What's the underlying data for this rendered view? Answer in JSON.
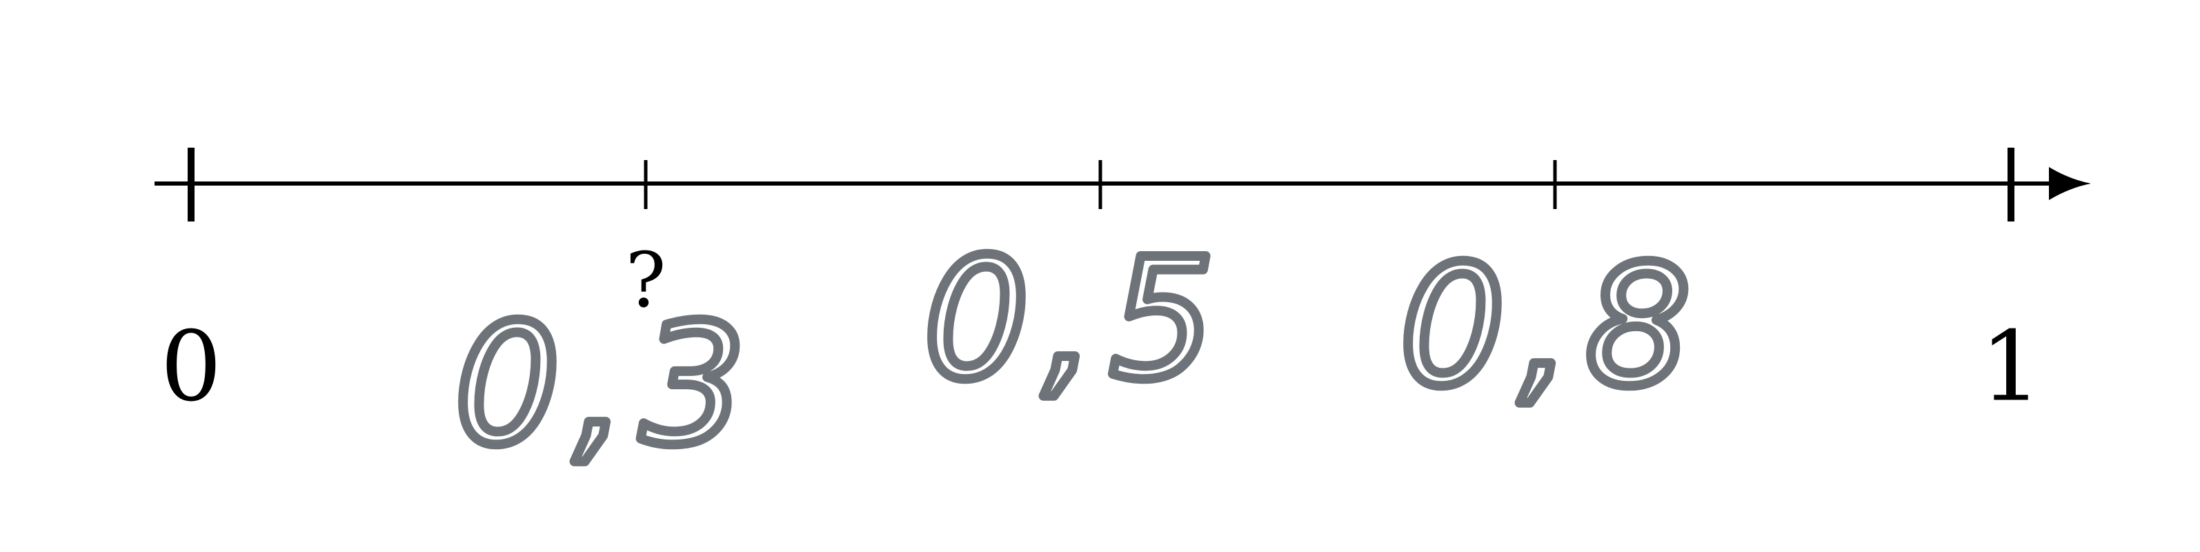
{
  "axis_labels": {
    "start": "0",
    "end": "1"
  },
  "question_mark": "?",
  "handwritten": [
    "0,3",
    "0,5",
    "0,8"
  ]
}
